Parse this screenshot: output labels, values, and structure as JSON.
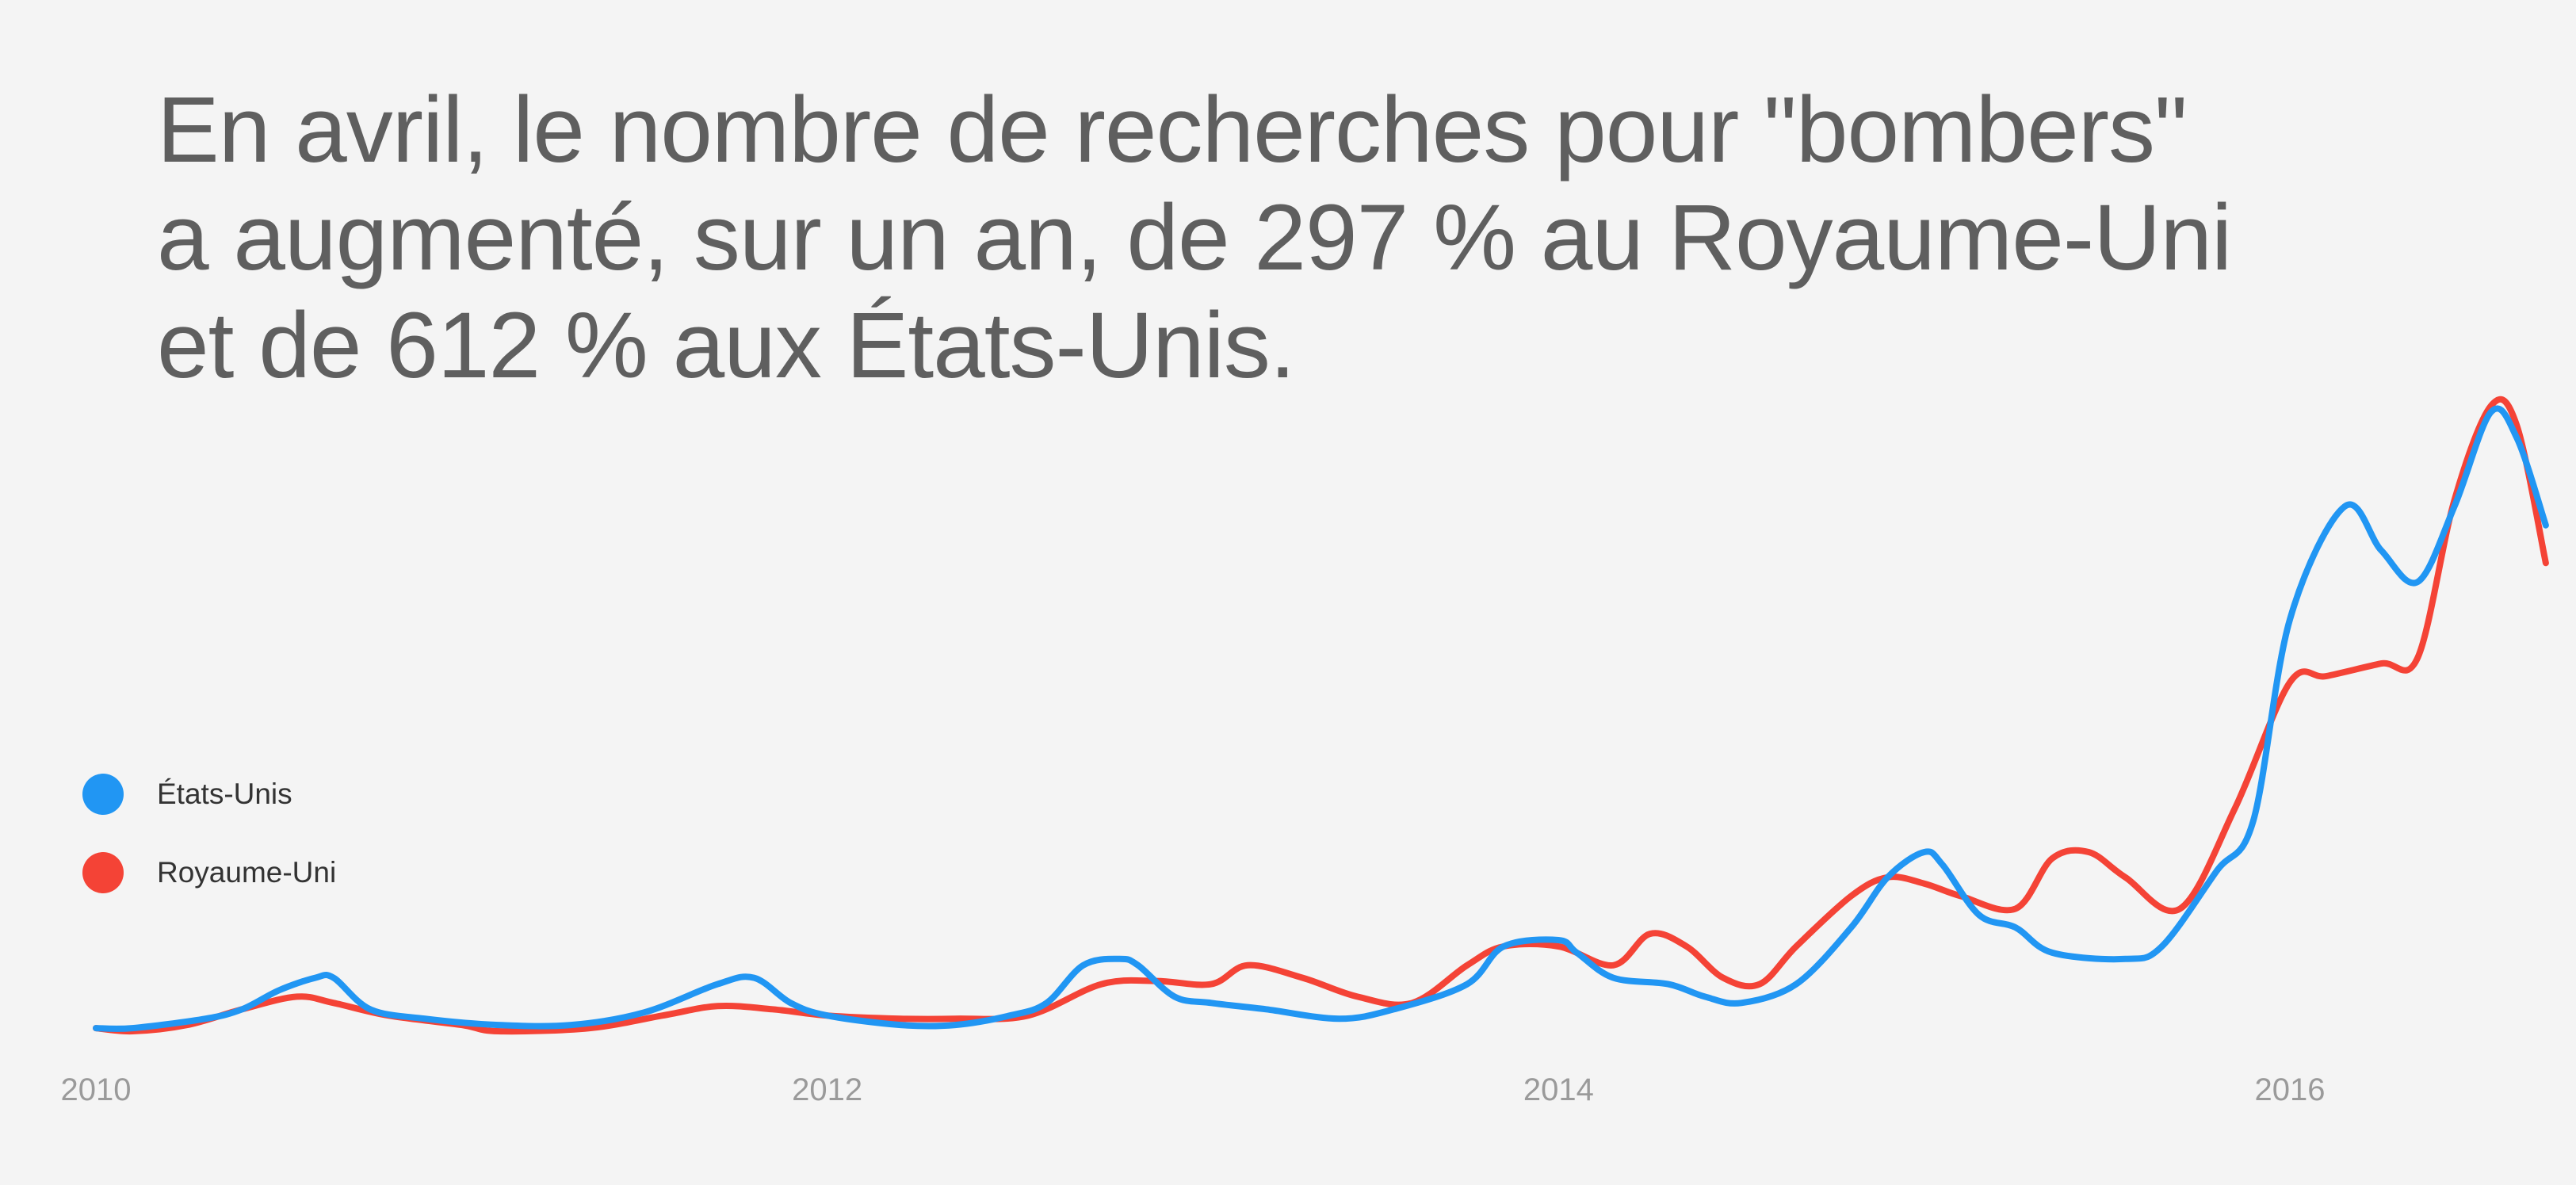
{
  "headline": [
    "En avril, le nombre de recherches pour \"bombers\"",
    "a augmenté, sur un an, de 297 % au Royaume-Uni",
    "et de 612 % aux États-Unis."
  ],
  "legend": [
    {
      "label": "États-Unis",
      "color": "#2196f3"
    },
    {
      "label": "Royaume-Uni",
      "color": "#f44336"
    }
  ],
  "chart_data": {
    "type": "line",
    "xlabel": "",
    "ylabel": "",
    "x_ticks": [
      "2010",
      "2012",
      "2014",
      "2016"
    ],
    "xlim": [
      2010,
      2016.7
    ],
    "ylim": [
      0,
      100
    ],
    "grid": false,
    "legend_position": "left",
    "series": [
      {
        "name": "États-Unis",
        "color": "#2196f3",
        "points": [
          [
            2010.0,
            1
          ],
          [
            2010.1,
            1
          ],
          [
            2010.3,
            2.5
          ],
          [
            2010.4,
            4
          ],
          [
            2010.5,
            7
          ],
          [
            2010.6,
            9
          ],
          [
            2010.65,
            9
          ],
          [
            2010.75,
            4
          ],
          [
            2010.9,
            2.5
          ],
          [
            2011.1,
            1.5
          ],
          [
            2011.3,
            1.5
          ],
          [
            2011.5,
            3.5
          ],
          [
            2011.7,
            8
          ],
          [
            2011.8,
            9
          ],
          [
            2011.9,
            5
          ],
          [
            2012.0,
            3
          ],
          [
            2012.2,
            1.5
          ],
          [
            2012.35,
            1.5
          ],
          [
            2012.5,
            3
          ],
          [
            2012.6,
            5
          ],
          [
            2012.7,
            11
          ],
          [
            2012.8,
            12
          ],
          [
            2012.85,
            11
          ],
          [
            2012.95,
            6
          ],
          [
            2013.05,
            5
          ],
          [
            2013.2,
            4
          ],
          [
            2013.4,
            2.5
          ],
          [
            2013.55,
            4
          ],
          [
            2013.75,
            8
          ],
          [
            2013.85,
            14
          ],
          [
            2014.0,
            15
          ],
          [
            2014.05,
            13
          ],
          [
            2014.15,
            9
          ],
          [
            2014.3,
            8
          ],
          [
            2014.4,
            6
          ],
          [
            2014.5,
            5
          ],
          [
            2014.65,
            8
          ],
          [
            2014.8,
            17
          ],
          [
            2014.9,
            25
          ],
          [
            2015.0,
            29
          ],
          [
            2015.05,
            27
          ],
          [
            2015.15,
            19
          ],
          [
            2015.25,
            17
          ],
          [
            2015.35,
            13
          ],
          [
            2015.55,
            12
          ],
          [
            2015.65,
            14
          ],
          [
            2015.8,
            26
          ],
          [
            2015.9,
            34
          ],
          [
            2016.0,
            66
          ],
          [
            2016.15,
            84
          ],
          [
            2016.25,
            77
          ],
          [
            2016.35,
            72
          ],
          [
            2016.45,
            84
          ],
          [
            2016.55,
            99
          ],
          [
            2016.62,
            95
          ],
          [
            2016.7,
            81
          ]
        ]
      },
      {
        "name": "Royaume-Uni",
        "color": "#f44336",
        "points": [
          [
            2010.0,
            1
          ],
          [
            2010.1,
            0.5
          ],
          [
            2010.25,
            1.5
          ],
          [
            2010.4,
            4
          ],
          [
            2010.55,
            6
          ],
          [
            2010.65,
            5
          ],
          [
            2010.8,
            3
          ],
          [
            2011.0,
            1.5
          ],
          [
            2011.1,
            0.5
          ],
          [
            2011.35,
            1
          ],
          [
            2011.55,
            3
          ],
          [
            2011.7,
            4.5
          ],
          [
            2011.85,
            4
          ],
          [
            2012.0,
            3
          ],
          [
            2012.2,
            2.5
          ],
          [
            2012.35,
            2.5
          ],
          [
            2012.55,
            3
          ],
          [
            2012.75,
            8
          ],
          [
            2012.9,
            8.5
          ],
          [
            2013.05,
            8
          ],
          [
            2013.15,
            11
          ],
          [
            2013.3,
            9
          ],
          [
            2013.45,
            6
          ],
          [
            2013.6,
            5
          ],
          [
            2013.75,
            11
          ],
          [
            2013.85,
            14
          ],
          [
            2014.0,
            14
          ],
          [
            2014.15,
            11
          ],
          [
            2014.25,
            16
          ],
          [
            2014.35,
            14
          ],
          [
            2014.45,
            9
          ],
          [
            2014.55,
            8
          ],
          [
            2014.65,
            14
          ],
          [
            2014.8,
            22
          ],
          [
            2014.9,
            25
          ],
          [
            2015.0,
            24
          ],
          [
            2015.1,
            22
          ],
          [
            2015.25,
            20
          ],
          [
            2015.35,
            28
          ],
          [
            2015.45,
            29
          ],
          [
            2015.55,
            25
          ],
          [
            2015.7,
            20
          ],
          [
            2015.85,
            36
          ],
          [
            2016.0,
            56
          ],
          [
            2016.1,
            57
          ],
          [
            2016.25,
            59
          ],
          [
            2016.35,
            60
          ],
          [
            2016.45,
            85
          ],
          [
            2016.55,
            100
          ],
          [
            2016.62,
            97
          ],
          [
            2016.7,
            75
          ]
        ]
      }
    ]
  }
}
